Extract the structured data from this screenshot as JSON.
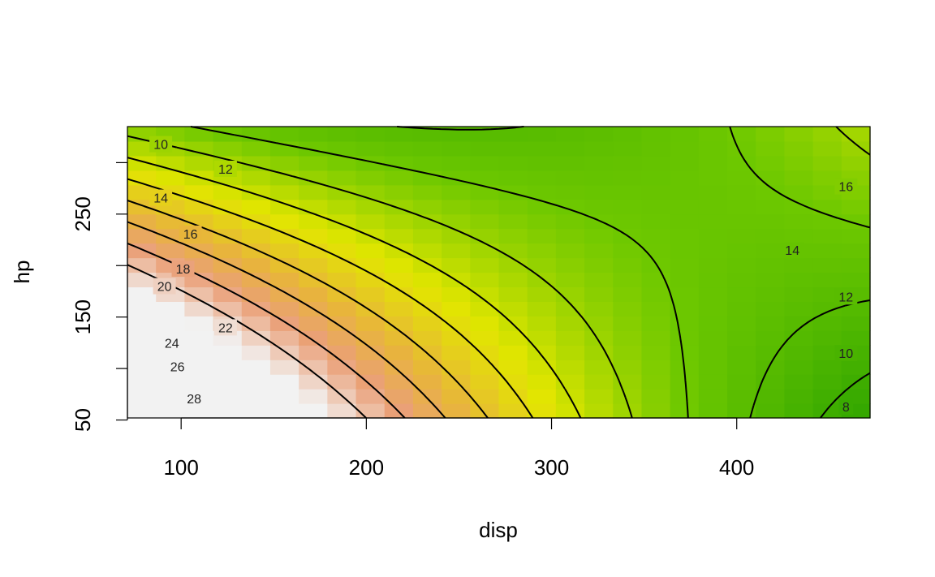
{
  "chart_data": {
    "type": "heatmap",
    "title": "",
    "xlabel": "disp",
    "ylabel": "hp",
    "xlim": [
      71,
      472
    ],
    "ylim": [
      52,
      335
    ],
    "x_ticks": [
      100,
      200,
      300,
      400
    ],
    "y_ticks": [
      50,
      100,
      150,
      200,
      250,
      300
    ],
    "y_tick_labels": [
      "50",
      "",
      "150",
      "",
      "250",
      ""
    ],
    "colors": {
      "low": "#1a9900",
      "mid": "#e6e600",
      "high": "#f2f2f2",
      "line": "#000000"
    },
    "surface": {
      "description_only_for_rendering": false,
      "value_range": [
        7,
        30
      ]
    },
    "contours": [
      {
        "level": 8,
        "label": "8",
        "label_at": [
          459,
          63
        ]
      },
      {
        "level": 10,
        "label": "10",
        "label_at": [
          459,
          115
        ]
      },
      {
        "level": 10,
        "label": "10",
        "label_at": [
          89,
          318
        ]
      },
      {
        "level": 12,
        "label": "12",
        "label_at": [
          459,
          170
        ]
      },
      {
        "level": 12,
        "label": "12",
        "label_at": [
          124,
          294
        ]
      },
      {
        "level": 14,
        "label": "14",
        "label_at": [
          89,
          266
        ]
      },
      {
        "level": 14,
        "label": "14",
        "label_at": [
          430,
          215
        ]
      },
      {
        "level": 16,
        "label": "16",
        "label_at": [
          105,
          231
        ]
      },
      {
        "level": 16,
        "label": "16",
        "label_at": [
          459,
          277
        ]
      },
      {
        "level": 18,
        "label": "18",
        "label_at": [
          101,
          197
        ]
      },
      {
        "level": 20,
        "label": "20",
        "label_at": [
          91,
          180
        ]
      },
      {
        "level": 22,
        "label": "22",
        "label_at": [
          124,
          140
        ]
      },
      {
        "level": 24,
        "label": "24",
        "label_at": [
          95,
          125
        ]
      },
      {
        "level": 26,
        "label": "26",
        "label_at": [
          98,
          102
        ]
      },
      {
        "level": 28,
        "label": "28",
        "label_at": [
          107,
          71
        ]
      }
    ]
  }
}
